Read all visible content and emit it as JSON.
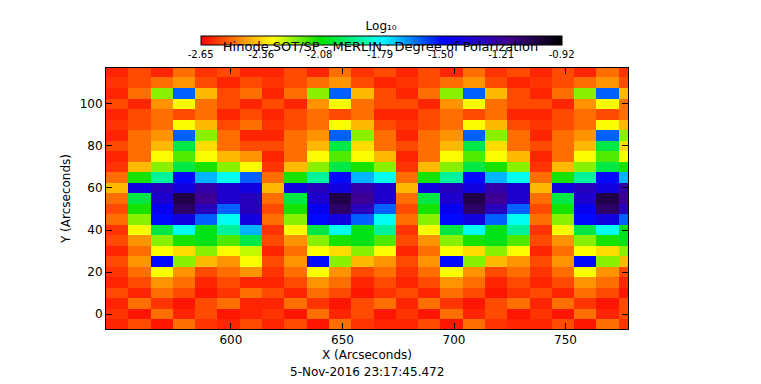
{
  "chart_data": {
    "type": "heatmap",
    "title": "Hinode SOT/SP - MERLIN : Degree of Polarization",
    "xlabel": "X (Arcseconds)",
    "ylabel": "Y (Arcseconds)",
    "annotations": [
      "5-Nov-2016 23:17:45.472"
    ],
    "xlim": [
      544,
      778
    ],
    "ylim": [
      -7,
      117
    ],
    "xticks": [
      600,
      650,
      700,
      750
    ],
    "yticks": [
      0,
      20,
      40,
      60,
      80,
      100
    ],
    "x": [
      549,
      559,
      569,
      579,
      589,
      599,
      609,
      619,
      629,
      639,
      649,
      659,
      669,
      679,
      689,
      699,
      709,
      719,
      729,
      739,
      749,
      759,
      769,
      779
    ],
    "y": [
      -5,
      0,
      5,
      10,
      15,
      20,
      25,
      30,
      35,
      40,
      45,
      50,
      55,
      60,
      65,
      70,
      75,
      80,
      85,
      90,
      95,
      100,
      105,
      110,
      115
    ],
    "z": [
      [
        -2.6,
        -2.55,
        -2.62,
        -2.5,
        -2.58,
        -2.6,
        -2.55,
        -2.6,
        -2.55,
        -2.62,
        -2.5,
        -2.58,
        -2.6,
        -2.6,
        -2.55,
        -2.62,
        -2.5,
        -2.58,
        -2.6,
        -2.6,
        -2.55,
        -2.62,
        -2.5,
        -2.58
      ],
      [
        -2.58,
        -2.62,
        -2.5,
        -2.6,
        -2.55,
        -2.62,
        -2.6,
        -2.58,
        -2.62,
        -2.5,
        -2.6,
        -2.55,
        -2.62,
        -2.58,
        -2.62,
        -2.5,
        -2.6,
        -2.55,
        -2.62,
        -2.58,
        -2.62,
        -2.5,
        -2.6,
        -2.55
      ],
      [
        -2.6,
        -2.5,
        -2.58,
        -2.62,
        -2.55,
        -2.5,
        -2.6,
        -2.6,
        -2.5,
        -2.58,
        -2.62,
        -2.55,
        -2.5,
        -2.6,
        -2.5,
        -2.58,
        -2.62,
        -2.55,
        -2.5,
        -2.6,
        -2.5,
        -2.58,
        -2.62,
        -2.55
      ],
      [
        -2.55,
        -2.6,
        -2.5,
        -2.55,
        -2.62,
        -2.58,
        -2.5,
        -2.55,
        -2.6,
        -2.5,
        -2.55,
        -2.62,
        -2.58,
        -2.55,
        -2.6,
        -2.5,
        -2.55,
        -2.62,
        -2.58,
        -2.55,
        -2.6,
        -2.5,
        -2.55,
        -2.62
      ],
      [
        -2.6,
        -2.55,
        -2.45,
        -2.5,
        -2.6,
        -2.55,
        -2.6,
        -2.6,
        -2.55,
        -2.45,
        -2.5,
        -2.6,
        -2.55,
        -2.6,
        -2.55,
        -2.45,
        -2.5,
        -2.6,
        -2.55,
        -2.6,
        -2.55,
        -2.45,
        -2.5,
        -2.6
      ],
      [
        -2.58,
        -2.5,
        -2.3,
        -2.45,
        -2.55,
        -2.5,
        -2.45,
        -2.58,
        -2.5,
        -2.3,
        -2.45,
        -2.55,
        -2.5,
        -2.58,
        -2.5,
        -2.3,
        -2.45,
        -2.55,
        -2.5,
        -2.58,
        -2.5,
        -2.3,
        -2.45,
        -2.55
      ],
      [
        -2.55,
        -2.45,
        -1.5,
        -2.2,
        -2.4,
        -2.45,
        -2.3,
        -2.55,
        -2.45,
        -1.5,
        -2.2,
        -2.4,
        -2.45,
        -2.55,
        -2.45,
        -1.5,
        -2.2,
        -2.4,
        -2.45,
        -2.55,
        -2.45,
        -1.5,
        -2.2,
        -2.4
      ],
      [
        -2.6,
        -2.5,
        -2.3,
        -2.35,
        -2.2,
        -2.3,
        -2.25,
        -2.6,
        -2.5,
        -2.3,
        -2.35,
        -2.2,
        -2.3,
        -2.6,
        -2.5,
        -2.3,
        -2.35,
        -2.2,
        -2.3,
        -2.6,
        -2.5,
        -2.3,
        -2.35,
        -2.2
      ],
      [
        -2.55,
        -2.45,
        -2.2,
        -2.1,
        -2.05,
        -2.15,
        -2.0,
        -2.55,
        -2.45,
        -2.2,
        -2.1,
        -2.05,
        -2.15,
        -2.55,
        -2.45,
        -2.2,
        -2.1,
        -2.05,
        -2.15,
        -2.55,
        -2.45,
        -2.2,
        -2.1,
        -2.05
      ],
      [
        -2.58,
        -2.3,
        -2.0,
        -1.8,
        -2.05,
        -1.9,
        -1.7,
        -2.58,
        -2.3,
        -2.0,
        -1.8,
        -2.05,
        -1.9,
        -2.58,
        -2.3,
        -2.0,
        -1.8,
        -2.05,
        -1.9,
        -2.58,
        -2.3,
        -2.0,
        -1.8,
        -2.05
      ],
      [
        -2.5,
        -2.2,
        -1.5,
        -1.4,
        -1.6,
        -1.8,
        -1.4,
        -2.5,
        -2.2,
        -1.5,
        -1.4,
        -1.6,
        -1.8,
        -2.5,
        -2.2,
        -1.5,
        -1.4,
        -1.6,
        -1.8,
        -2.5,
        -2.2,
        -1.5,
        -1.4,
        -1.6
      ],
      [
        -2.55,
        -2.1,
        -1.45,
        -1.1,
        -1.3,
        -1.6,
        -1.3,
        -2.55,
        -2.1,
        -1.45,
        -1.1,
        -1.3,
        -1.6,
        -2.55,
        -2.1,
        -1.45,
        -1.1,
        -1.3,
        -1.6,
        -2.55,
        -2.1,
        -1.45,
        -1.1,
        -1.3
      ],
      [
        -2.5,
        -2.0,
        -1.35,
        -1.05,
        -1.2,
        -1.35,
        -1.3,
        -2.5,
        -2.0,
        -1.35,
        -1.05,
        -1.2,
        -1.35,
        -2.5,
        -2.0,
        -1.35,
        -1.05,
        -1.2,
        -1.35,
        -2.5,
        -2.0,
        -1.35,
        -1.05,
        -1.2
      ],
      [
        -2.4,
        -1.4,
        -1.3,
        -1.4,
        -1.25,
        -1.35,
        -1.4,
        -2.4,
        -1.4,
        -1.3,
        -1.4,
        -1.25,
        -1.35,
        -2.4,
        -1.4,
        -1.3,
        -1.4,
        -1.25,
        -1.35,
        -2.4,
        -1.4,
        -1.3,
        -1.4,
        -1.25
      ],
      [
        -2.5,
        -2.1,
        -1.9,
        -1.5,
        -1.7,
        -1.8,
        -1.6,
        -2.5,
        -2.1,
        -1.9,
        -1.5,
        -1.7,
        -1.8,
        -2.5,
        -2.1,
        -1.9,
        -1.5,
        -1.7,
        -1.8,
        -2.5,
        -2.1,
        -1.9,
        -1.5,
        -1.7
      ],
      [
        -2.58,
        -2.4,
        -2.2,
        -2.0,
        -2.1,
        -2.2,
        -2.3,
        -2.58,
        -2.4,
        -2.2,
        -2.0,
        -2.1,
        -2.2,
        -2.58,
        -2.4,
        -2.2,
        -2.0,
        -2.1,
        -2.2,
        -2.58,
        -2.4,
        -2.2,
        -2.0,
        -2.1
      ],
      [
        -2.6,
        -2.5,
        -2.3,
        -2.15,
        -2.3,
        -2.4,
        -2.45,
        -2.6,
        -2.5,
        -2.3,
        -2.15,
        -2.3,
        -2.4,
        -2.6,
        -2.5,
        -2.3,
        -2.15,
        -2.3,
        -2.4,
        -2.6,
        -2.5,
        -2.3,
        -2.15,
        -2.3
      ],
      [
        -2.55,
        -2.5,
        -2.4,
        -2.0,
        -2.35,
        -2.5,
        -2.55,
        -2.55,
        -2.5,
        -2.4,
        -2.0,
        -2.35,
        -2.5,
        -2.55,
        -2.5,
        -2.4,
        -2.0,
        -2.35,
        -2.5,
        -2.55,
        -2.5,
        -2.4,
        -2.0,
        -2.35
      ],
      [
        -2.6,
        -2.5,
        -2.45,
        -1.6,
        -2.2,
        -2.5,
        -2.6,
        -2.6,
        -2.5,
        -2.45,
        -1.6,
        -2.2,
        -2.5,
        -2.6,
        -2.5,
        -2.45,
        -1.6,
        -2.2,
        -2.5,
        -2.6,
        -2.5,
        -2.45,
        -1.6,
        -2.2
      ],
      [
        -2.58,
        -2.55,
        -2.5,
        -2.3,
        -2.4,
        -2.55,
        -2.5,
        -2.58,
        -2.55,
        -2.5,
        -2.3,
        -2.4,
        -2.55,
        -2.58,
        -2.55,
        -2.5,
        -2.3,
        -2.4,
        -2.55,
        -2.58,
        -2.55,
        -2.5,
        -2.3,
        -2.4
      ],
      [
        -2.6,
        -2.55,
        -2.5,
        -2.55,
        -2.5,
        -2.6,
        -2.55,
        -2.6,
        -2.55,
        -2.5,
        -2.55,
        -2.5,
        -2.6,
        -2.6,
        -2.55,
        -2.5,
        -2.55,
        -2.5,
        -2.6,
        -2.6,
        -2.55,
        -2.5,
        -2.55,
        -2.5
      ],
      [
        -2.55,
        -2.6,
        -2.45,
        -2.3,
        -2.5,
        -2.55,
        -2.6,
        -2.55,
        -2.6,
        -2.45,
        -2.3,
        -2.5,
        -2.55,
        -2.55,
        -2.6,
        -2.45,
        -2.3,
        -2.5,
        -2.55,
        -2.55,
        -2.6,
        -2.45,
        -2.3,
        -2.5
      ],
      [
        -2.6,
        -2.5,
        -2.2,
        -1.6,
        -2.4,
        -2.55,
        -2.5,
        -2.6,
        -2.5,
        -2.2,
        -1.6,
        -2.4,
        -2.55,
        -2.6,
        -2.5,
        -2.2,
        -1.6,
        -2.4,
        -2.55,
        -2.6,
        -2.5,
        -2.2,
        -1.6,
        -2.4
      ],
      [
        -2.58,
        -2.55,
        -2.5,
        -2.45,
        -2.55,
        -2.6,
        -2.55,
        -2.58,
        -2.55,
        -2.5,
        -2.45,
        -2.55,
        -2.6,
        -2.58,
        -2.55,
        -2.5,
        -2.45,
        -2.55,
        -2.6,
        -2.58,
        -2.55,
        -2.5,
        -2.45,
        -2.55
      ],
      [
        -2.6,
        -2.55,
        -2.6,
        -2.5,
        -2.58,
        -2.55,
        -2.6,
        -2.6,
        -2.55,
        -2.6,
        -2.5,
        -2.58,
        -2.55,
        -2.6,
        -2.55,
        -2.6,
        -2.5,
        -2.58,
        -2.55,
        -2.6,
        -2.55,
        -2.6,
        -2.5,
        -2.58
      ]
    ],
    "colorbar": {
      "title": "Log₁₀",
      "range": [
        -2.65,
        -0.92
      ],
      "ticks": [
        -2.65,
        -2.36,
        -2.08,
        -1.79,
        {
          "value": -1.5,
          "label": "-1.50"
        },
        -1.21,
        -0.92
      ]
    }
  }
}
